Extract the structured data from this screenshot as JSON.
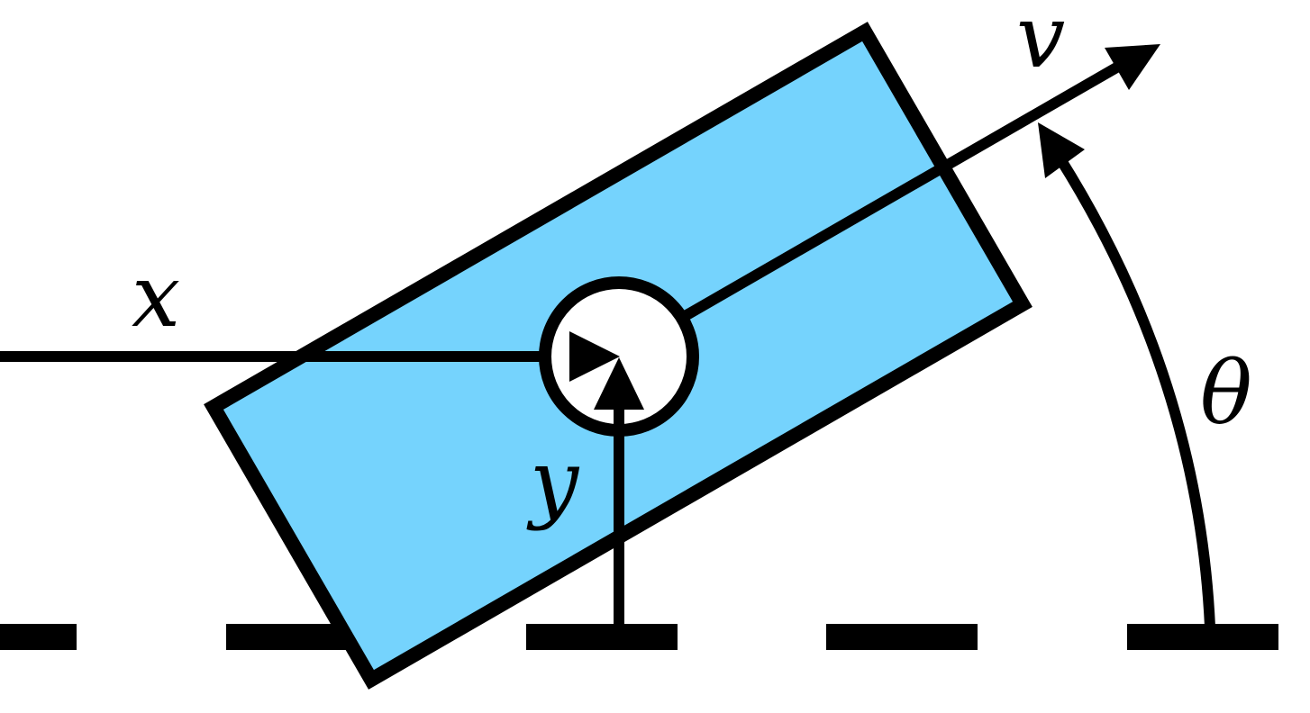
{
  "labels": {
    "x": "x",
    "y": "y",
    "v": "v",
    "theta": "θ"
  },
  "colors": {
    "body_fill": "#75d3fd",
    "stroke": "#000000",
    "background": "#ffffff"
  }
}
